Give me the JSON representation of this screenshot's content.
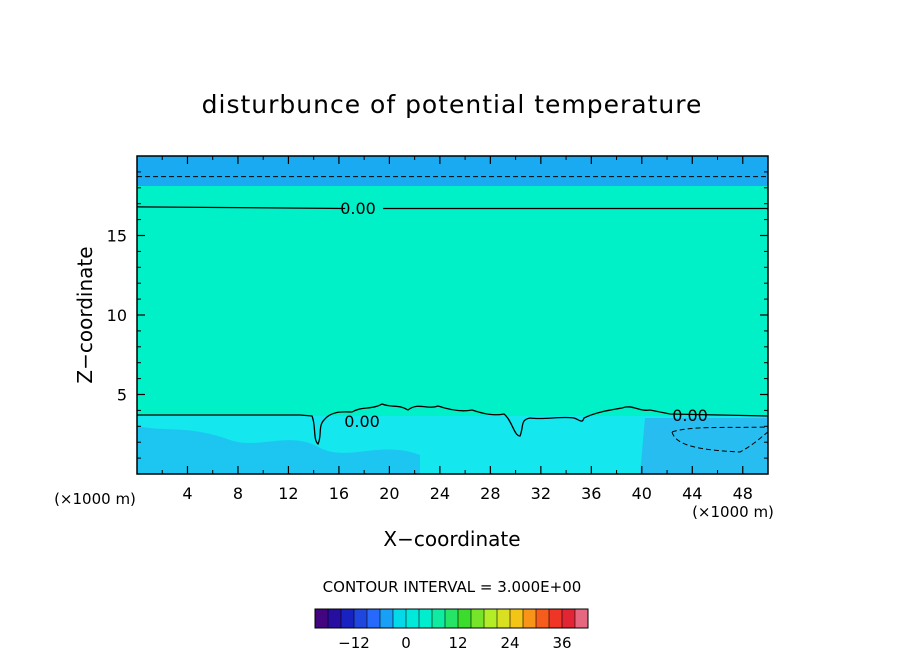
{
  "chart_data": {
    "type": "heatmap",
    "title": "disturbunce of potential temperature",
    "xlabel": "X−coordinate",
    "ylabel": "Z−coordinate",
    "x_unit": "(×1000 m)",
    "z_unit": "(×1000 m)",
    "xlim": [
      0,
      50
    ],
    "ylim": [
      0,
      20
    ],
    "x_ticks": [
      4,
      8,
      12,
      16,
      20,
      24,
      28,
      32,
      36,
      40,
      44,
      48
    ],
    "y_ticks": [
      5,
      10,
      15
    ],
    "contour_interval": "CONTOUR INTERVAL = 3.000E+00",
    "contour_labels": [
      {
        "text": "0.00",
        "x": 17.5,
        "z": 16.7
      },
      {
        "text": "0.00",
        "x": 18.0,
        "z": 3.2
      },
      {
        "text": "0.00",
        "x": 44.0,
        "z": 3.6
      }
    ],
    "colorbar": {
      "min": -21,
      "max": 42,
      "interval": 3,
      "tick_values": [
        -12,
        0,
        12,
        24,
        36
      ],
      "tick_labels": [
        "−12",
        "0",
        "12",
        "24",
        "36"
      ]
    },
    "field_bands": [
      {
        "zmin": 18.0,
        "zmax": 20.0,
        "value": -3
      },
      {
        "zmin": 3.7,
        "zmax": 18.0,
        "value": 0
      },
      {
        "zmin": 0.0,
        "zmax": 3.7,
        "value": -1
      }
    ],
    "grid": false,
    "legend": "none"
  }
}
